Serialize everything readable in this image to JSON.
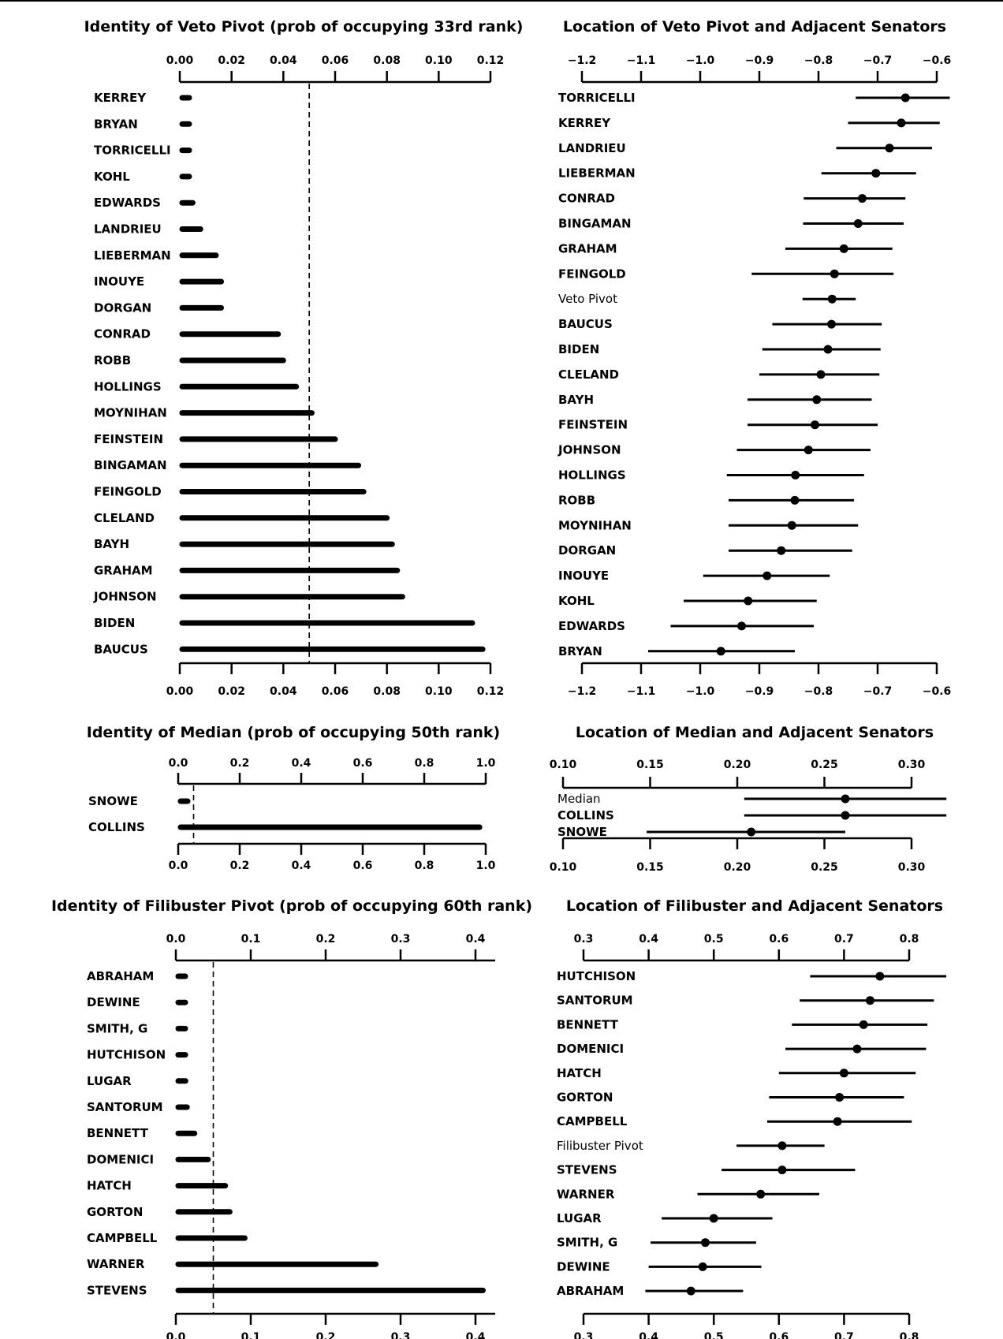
{
  "charts": [
    {
      "id": "veto-identity",
      "type": "bar",
      "orientation": "horizontal",
      "title": "Identity of Veto Pivot (prob of occupying 33rd rank)",
      "xlim": [
        0,
        0.12
      ],
      "ticks": [
        "0.00",
        "0.02",
        "0.04",
        "0.06",
        "0.08",
        "0.10",
        "0.12"
      ],
      "tick_values": [
        0,
        0.02,
        0.04,
        0.06,
        0.08,
        0.1,
        0.12
      ],
      "reference_line": 0.05,
      "categories": [
        "KERREY",
        "BRYAN",
        "TORRICELLI",
        "KOHL",
        "EDWARDS",
        "LANDRIEU",
        "LIEBERMAN",
        "INOUYE",
        "DORGAN",
        "CONRAD",
        "ROBB",
        "HOLLINGS",
        "MOYNIHAN",
        "FEINSTEIN",
        "BINGAMAN",
        "FEINGOLD",
        "CLELAND",
        "BAYH",
        "GRAHAM",
        "JOHNSON",
        "BIDEN",
        "BAUCUS"
      ],
      "values": [
        0.002,
        0.002,
        0.002,
        0.002,
        0.005,
        0.008,
        0.014,
        0.016,
        0.016,
        0.038,
        0.04,
        0.045,
        0.051,
        0.06,
        0.069,
        0.071,
        0.08,
        0.082,
        0.084,
        0.086,
        0.113,
        0.117
      ]
    },
    {
      "id": "veto-location",
      "type": "dot-interval",
      "title": "Location of Veto Pivot and Adjacent Senators",
      "xlim": [
        -1.2,
        -0.6
      ],
      "ticks": [
        "−1.2",
        "−1.1",
        "−1.0",
        "−0.9",
        "−0.8",
        "−0.7",
        "−0.6"
      ],
      "tick_values": [
        -1.2,
        -1.1,
        -1.0,
        -0.9,
        -0.8,
        -0.7,
        -0.6
      ],
      "rows": [
        {
          "label": "TORRICELLI",
          "point": -0.653,
          "low": -0.737,
          "high": -0.578
        },
        {
          "label": "KERREY",
          "point": -0.66,
          "low": -0.75,
          "high": -0.595
        },
        {
          "label": "LANDRIEU",
          "point": -0.68,
          "low": -0.77,
          "high": -0.608
        },
        {
          "label": "LIEBERMAN",
          "point": -0.703,
          "low": -0.795,
          "high": -0.635
        },
        {
          "label": "CONRAD",
          "point": -0.726,
          "low": -0.825,
          "high": -0.653
        },
        {
          "label": "BINGAMAN",
          "point": -0.733,
          "low": -0.826,
          "high": -0.656
        },
        {
          "label": "GRAHAM",
          "point": -0.757,
          "low": -0.856,
          "high": -0.675
        },
        {
          "label": "FEINGOLD",
          "point": -0.773,
          "low": -0.913,
          "high": -0.673
        },
        {
          "label": "Veto Pivot",
          "point": -0.777,
          "low": -0.827,
          "high": -0.737,
          "plain": true
        },
        {
          "label": "BAUCUS",
          "point": -0.778,
          "low": -0.878,
          "high": -0.693
        },
        {
          "label": "BIDEN",
          "point": -0.784,
          "low": -0.895,
          "high": -0.695
        },
        {
          "label": "CLELAND",
          "point": -0.796,
          "low": -0.9,
          "high": -0.697
        },
        {
          "label": "BAYH",
          "point": -0.803,
          "low": -0.92,
          "high": -0.71
        },
        {
          "label": "FEINSTEIN",
          "point": -0.806,
          "low": -0.92,
          "high": -0.7
        },
        {
          "label": "JOHNSON",
          "point": -0.817,
          "low": -0.938,
          "high": -0.712
        },
        {
          "label": "HOLLINGS",
          "point": -0.839,
          "low": -0.955,
          "high": -0.723
        },
        {
          "label": "ROBB",
          "point": -0.84,
          "low": -0.952,
          "high": -0.74
        },
        {
          "label": "MOYNIHAN",
          "point": -0.845,
          "low": -0.952,
          "high": -0.733
        },
        {
          "label": "DORGAN",
          "point": -0.863,
          "low": -0.952,
          "high": -0.743
        },
        {
          "label": "INOUYE",
          "point": -0.887,
          "low": -0.995,
          "high": -0.781
        },
        {
          "label": "KOHL",
          "point": -0.919,
          "low": -1.028,
          "high": -0.803
        },
        {
          "label": "EDWARDS",
          "point": -0.93,
          "low": -1.05,
          "high": -0.808
        },
        {
          "label": "BRYAN",
          "point": -0.965,
          "low": -1.088,
          "high": -0.84
        }
      ]
    },
    {
      "id": "median-identity",
      "type": "bar",
      "orientation": "horizontal",
      "title": "Identity of Median (prob of occupying 50th rank)",
      "xlim": [
        0,
        1.0
      ],
      "ticks": [
        "0.0",
        "0.2",
        "0.4",
        "0.6",
        "0.8",
        "1.0"
      ],
      "tick_values": [
        0,
        0.2,
        0.4,
        0.6,
        0.8,
        1.0
      ],
      "reference_line": 0.05,
      "categories": [
        "SNOWE",
        "COLLINS"
      ],
      "values": [
        0.02,
        0.98
      ]
    },
    {
      "id": "median-location",
      "type": "dot-interval",
      "title": "Location of Median and Adjacent Senators",
      "xlim": [
        0.1,
        0.3
      ],
      "ticks": [
        "0.10",
        "0.15",
        "0.20",
        "0.25",
        "0.30"
      ],
      "tick_values": [
        0.1,
        0.15,
        0.2,
        0.25,
        0.3
      ],
      "rows": [
        {
          "label": "Median",
          "point": 0.262,
          "low": 0.204,
          "high": 0.32,
          "plain": true
        },
        {
          "label": "COLLINS",
          "point": 0.262,
          "low": 0.204,
          "high": 0.32
        },
        {
          "label": "SNOWE",
          "point": 0.208,
          "low": 0.148,
          "high": 0.262
        }
      ]
    },
    {
      "id": "filibuster-identity",
      "type": "bar",
      "orientation": "horizontal",
      "title": "Identity of Filibuster Pivot (prob of occupying 60th rank)",
      "xlim": [
        0,
        0.4
      ],
      "ticks": [
        "0.0",
        "0.1",
        "0.2",
        "0.3",
        "0.4"
      ],
      "tick_values": [
        0,
        0.1,
        0.2,
        0.3,
        0.4
      ],
      "reference_line": 0.05,
      "categories": [
        "ABRAHAM",
        "DEWINE",
        "SMITH, G",
        "HUTCHISON",
        "LUGAR",
        "SANTORUM",
        "BENNETT",
        "DOMENICI",
        "HATCH",
        "GORTON",
        "CAMPBELL",
        "WARNER",
        "STEVENS"
      ],
      "values": [
        0.003,
        0.006,
        0.008,
        0.01,
        0.013,
        0.015,
        0.025,
        0.043,
        0.066,
        0.072,
        0.092,
        0.267,
        0.41
      ]
    },
    {
      "id": "filibuster-location",
      "type": "dot-interval",
      "title": "Location of Filibuster and Adjacent Senators",
      "xlim": [
        0.3,
        0.8
      ],
      "ticks": [
        "0.3",
        "0.4",
        "0.5",
        "0.6",
        "0.7",
        "0.8"
      ],
      "tick_values": [
        0.3,
        0.4,
        0.5,
        0.6,
        0.7,
        0.8
      ],
      "rows": [
        {
          "label": "HUTCHISON",
          "point": 0.755,
          "low": 0.648,
          "high": 0.857
        },
        {
          "label": "SANTORUM",
          "point": 0.74,
          "low": 0.632,
          "high": 0.838
        },
        {
          "label": "BENNETT",
          "point": 0.73,
          "low": 0.62,
          "high": 0.828
        },
        {
          "label": "DOMENICI",
          "point": 0.72,
          "low": 0.61,
          "high": 0.826
        },
        {
          "label": "HATCH",
          "point": 0.7,
          "low": 0.6,
          "high": 0.81
        },
        {
          "label": "GORTON",
          "point": 0.693,
          "low": 0.585,
          "high": 0.792
        },
        {
          "label": "CAMPBELL",
          "point": 0.69,
          "low": 0.582,
          "high": 0.804
        },
        {
          "label": "Filibuster Pivot",
          "point": 0.605,
          "low": 0.535,
          "high": 0.67,
          "plain": true
        },
        {
          "label": "STEVENS",
          "point": 0.605,
          "low": 0.512,
          "high": 0.717
        },
        {
          "label": "WARNER",
          "point": 0.572,
          "low": 0.475,
          "high": 0.662
        },
        {
          "label": "LUGAR",
          "point": 0.5,
          "low": 0.42,
          "high": 0.59
        },
        {
          "label": "SMITH, G",
          "point": 0.487,
          "low": 0.403,
          "high": 0.565
        },
        {
          "label": "DEWINE",
          "point": 0.483,
          "low": 0.4,
          "high": 0.573
        },
        {
          "label": "ABRAHAM",
          "point": 0.465,
          "low": 0.395,
          "high": 0.545
        }
      ]
    }
  ]
}
